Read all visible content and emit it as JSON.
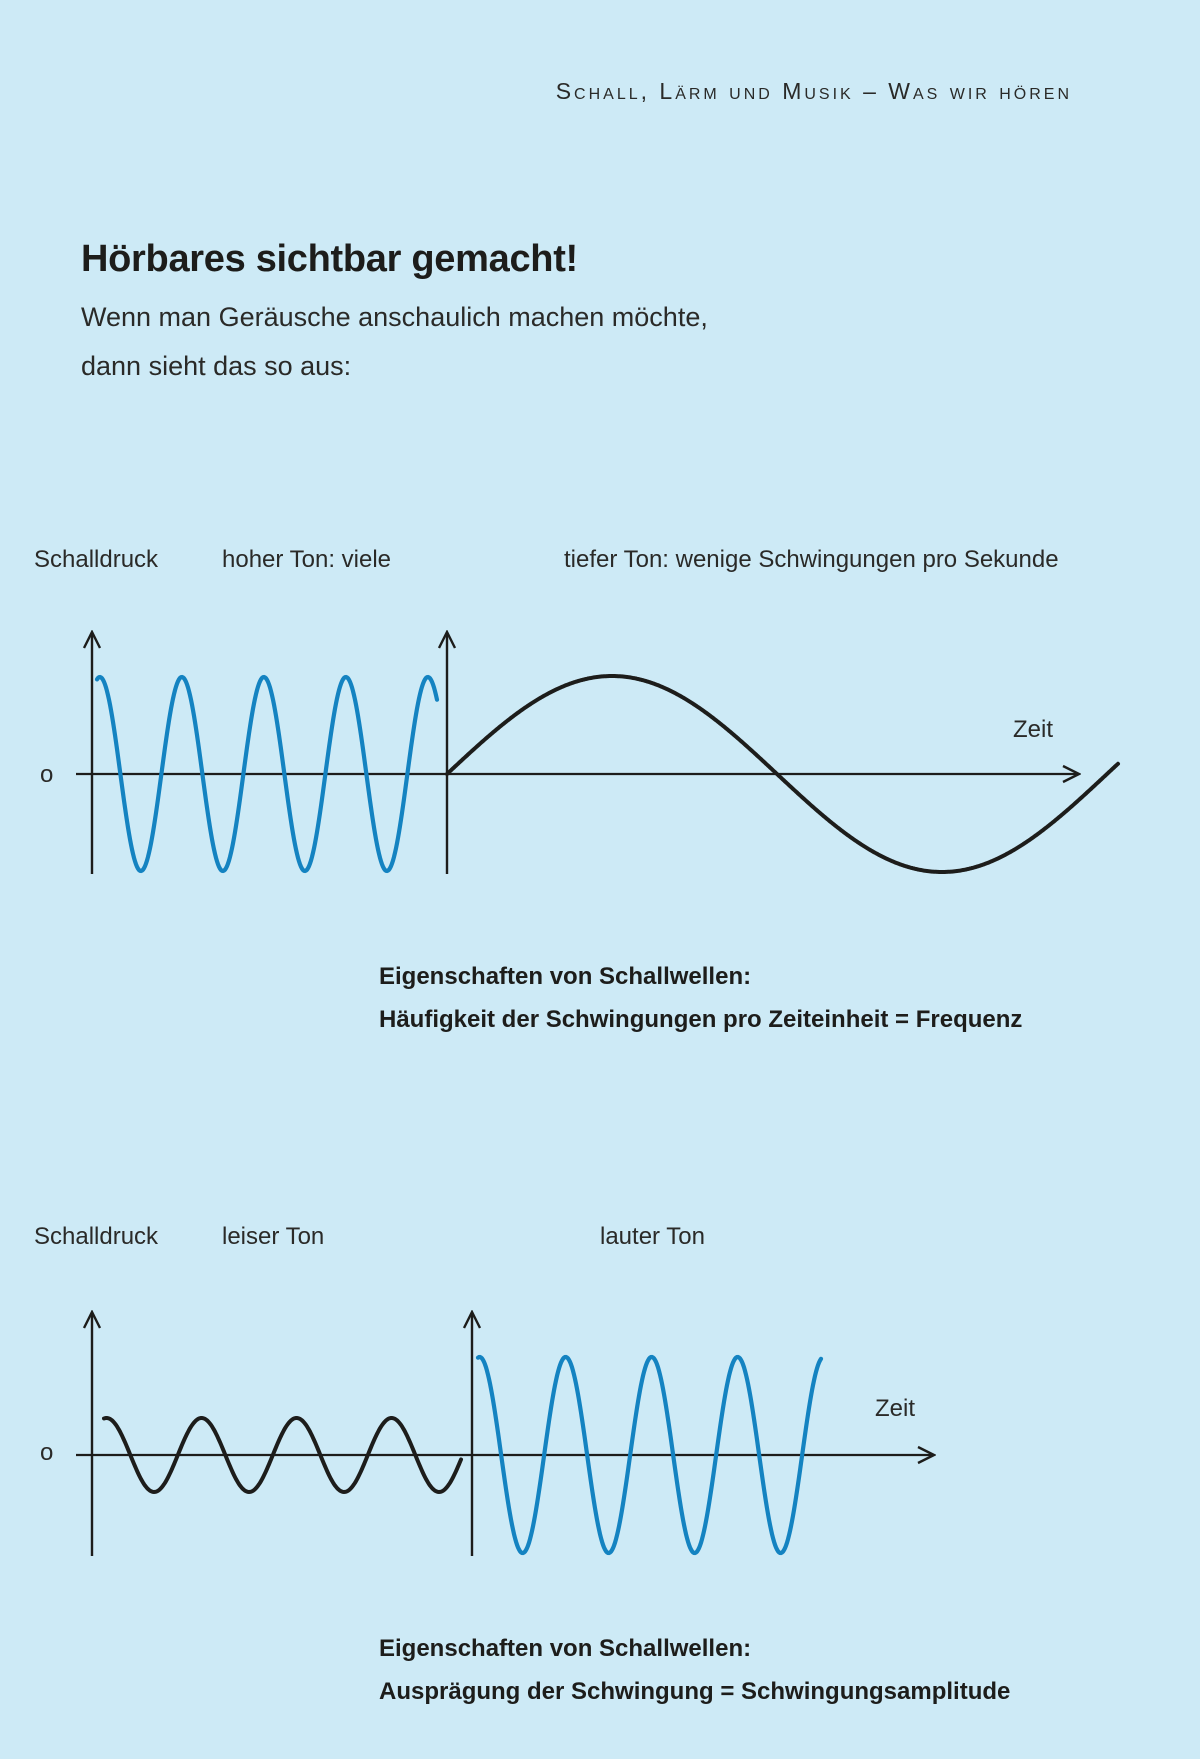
{
  "header": {
    "running_title": "Schall, Lärm und Musik – Was wir hören"
  },
  "headline": "Hörbares sichtbar gemacht!",
  "intro": {
    "line1": "Wenn man Geräusche anschaulich machen möchte,",
    "line2": "dann sieht das so aus:"
  },
  "diagram_frequency": {
    "y_axis_label": "Schalldruck",
    "zero_label": "o",
    "x_axis_label": "Zeit",
    "left_wave_label": "hoher Ton: viele",
    "right_wave_label": "tiefer Ton: wenige Schwingungen pro Sekunde",
    "caption_line1": "Eigenschaften von Schallwellen:",
    "caption_line2": "Häufigkeit der Schwingungen pro Zeiteinheit = Frequenz"
  },
  "diagram_amplitude": {
    "y_axis_label": "Schalldruck",
    "zero_label": "o",
    "x_axis_label": "Zeit",
    "left_wave_label": "leiser Ton",
    "right_wave_label": "lauter Ton",
    "caption_line1": "Eigenschaften von Schallwellen:",
    "caption_line2": "Ausprägung der Schwingung = Schwingungsamplitude"
  },
  "colors": {
    "background": "#cdeaf6",
    "blue_wave": "#1483c1",
    "black_wave": "#1d1d1b"
  }
}
